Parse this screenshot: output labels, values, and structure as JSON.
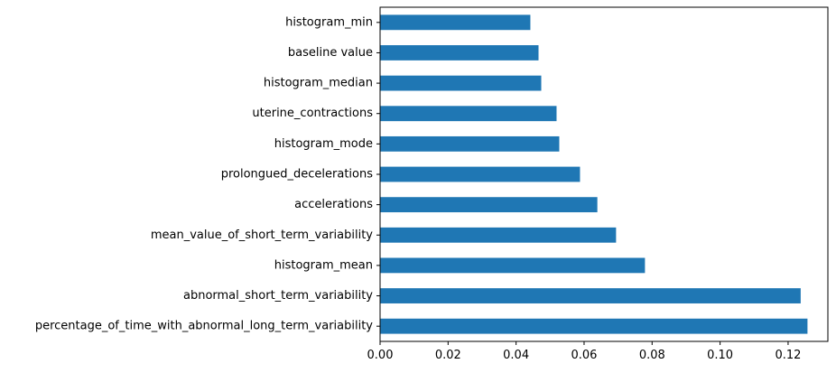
{
  "chart_data": {
    "type": "bar",
    "orientation": "horizontal",
    "title": "",
    "xlabel": "",
    "ylabel": "",
    "categories": [
      "percentage_of_time_with_abnormal_long_term_variability",
      "abnormal_short_term_variability",
      "histogram_mean",
      "mean_value_of_short_term_variability",
      "accelerations",
      "prolongued_decelerations",
      "histogram_mode",
      "uterine_contractions",
      "histogram_median",
      "baseline value",
      "histogram_min"
    ],
    "values": [
      0.1257,
      0.1237,
      0.0779,
      0.0694,
      0.0639,
      0.0588,
      0.0527,
      0.0519,
      0.0474,
      0.0466,
      0.0442
    ],
    "xlim": [
      0,
      0.1317
    ],
    "xticks": [
      0.0,
      0.02,
      0.04,
      0.06,
      0.08,
      0.1,
      0.12
    ],
    "xtick_labels": [
      "0.00",
      "0.02",
      "0.04",
      "0.06",
      "0.08",
      "0.10",
      "0.12"
    ],
    "grid": false,
    "legend": "none",
    "colors": {
      "bar": "#1f77b4",
      "axes": "#000000",
      "background": "#ffffff"
    }
  }
}
